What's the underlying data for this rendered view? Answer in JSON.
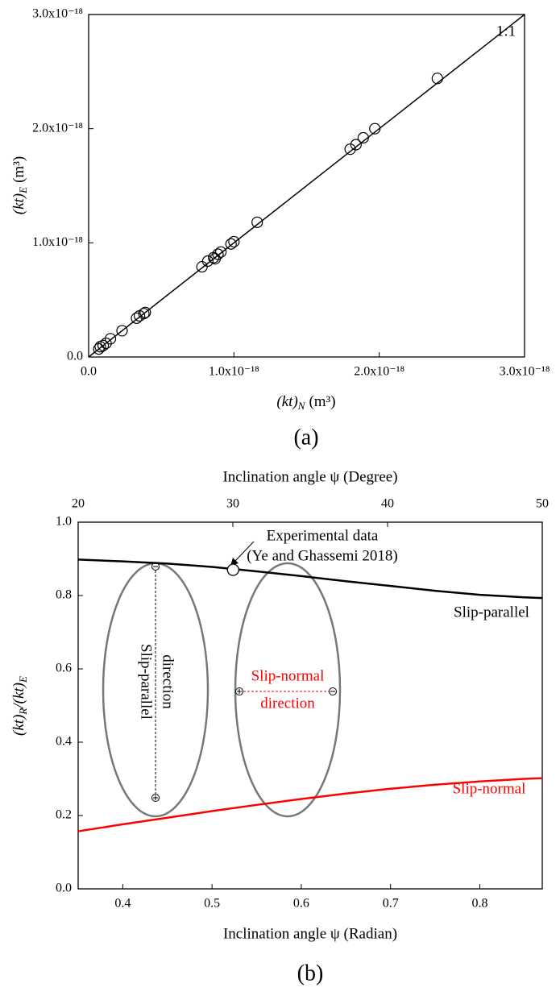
{
  "chart_data": [
    {
      "type": "scatter",
      "caption": "(a)",
      "xlabel": {
        "parts": [
          {
            "text": "(kt)",
            "sub": "N"
          }
        ],
        "unit": "(m³)"
      },
      "ylabel": {
        "parts": [
          {
            "text": "(kt)",
            "sub": "E"
          }
        ],
        "unit": "(m³)"
      },
      "x": [
        7e-20,
        8e-20,
        1e-19,
        1.2e-19,
        1.5e-19,
        2.3e-19,
        3.3e-19,
        3.5e-19,
        3.8e-19,
        3.9e-19,
        7.8e-19,
        8.2e-19,
        8.6e-19,
        8.7e-19,
        8.9e-19,
        9.1e-19,
        9.8e-19,
        1e-18,
        1.16e-18,
        1.8e-18,
        1.84e-18,
        1.89e-18,
        1.97e-18,
        2.4e-18
      ],
      "y": [
        7e-20,
        9e-20,
        1e-19,
        1.2e-19,
        1.6e-19,
        2.3e-19,
        3.4e-19,
        3.6e-19,
        3.8e-19,
        3.9e-19,
        7.9e-19,
        8.4e-19,
        8.7e-19,
        8.6e-19,
        9e-19,
        9.2e-19,
        9.9e-19,
        1.01e-18,
        1.18e-18,
        1.82e-18,
        1.86e-18,
        1.92e-18,
        2e-18,
        2.44e-18
      ],
      "color": "#000000",
      "ref_line": {
        "label": "1:1"
      },
      "xlim": [
        0,
        3e-18
      ],
      "ylim": [
        0,
        3e-18
      ],
      "xticks": [
        {
          "value": 0,
          "label": "0.0"
        },
        {
          "value": 1e-18,
          "label": "1.0x10⁻¹⁸"
        },
        {
          "value": 2e-18,
          "label": "2.0x10⁻¹⁸"
        },
        {
          "value": 3e-18,
          "label": "3.0x10⁻¹⁸"
        }
      ],
      "yticks": [
        {
          "value": 0,
          "label": "0.0"
        },
        {
          "value": 1e-18,
          "label": "1.0x10⁻¹⁸"
        },
        {
          "value": 2e-18,
          "label": "2.0x10⁻¹⁸"
        },
        {
          "value": 3e-18,
          "label": "3.0x10⁻¹⁸"
        }
      ]
    },
    {
      "type": "line",
      "caption": "(b)",
      "xlabel": "Inclination angle ψ (Radian)",
      "x2label": "Inclination angle ψ (Degree)",
      "ylabel": {
        "parts": [
          {
            "text": "(kt)",
            "sub": "R"
          },
          {
            "text": "/(kt)",
            "sub": "E"
          }
        ]
      },
      "x": [
        0.35,
        0.4,
        0.45,
        0.5,
        0.55,
        0.6,
        0.65,
        0.7,
        0.75,
        0.8,
        0.85,
        0.87
      ],
      "series": [
        {
          "name": "Slip-parallel",
          "color": "#000000",
          "values": [
            0.898,
            0.893,
            0.887,
            0.878,
            0.866,
            0.853,
            0.839,
            0.826,
            0.813,
            0.802,
            0.795,
            0.793
          ]
        },
        {
          "name": "Slip-normal",
          "color": "#ff0000",
          "values": [
            0.157,
            0.176,
            0.194,
            0.212,
            0.229,
            0.245,
            0.26,
            0.273,
            0.284,
            0.293,
            0.3,
            0.302
          ]
        }
      ],
      "experimental": {
        "x": 0.5236,
        "y": 0.87,
        "label": [
          "Experimental data",
          "(Ye and Ghassemi 2018)"
        ]
      },
      "diagram": {
        "parallel_label": [
          "Slip-parallel",
          "direction"
        ],
        "normal_label": [
          "Slip-normal",
          "direction"
        ]
      },
      "xlim": [
        0.35,
        0.87
      ],
      "x2lim": [
        20,
        50
      ],
      "ylim": [
        0,
        1.0
      ],
      "xticks": [
        0.4,
        0.5,
        0.6,
        0.7,
        0.8
      ],
      "x2ticks": [
        20,
        30,
        40,
        50
      ],
      "yticks": [
        {
          "value": 0,
          "label": "0.0"
        },
        0.2,
        0.4,
        0.6,
        0.8,
        {
          "value": 1,
          "label": "1.0"
        }
      ]
    }
  ]
}
